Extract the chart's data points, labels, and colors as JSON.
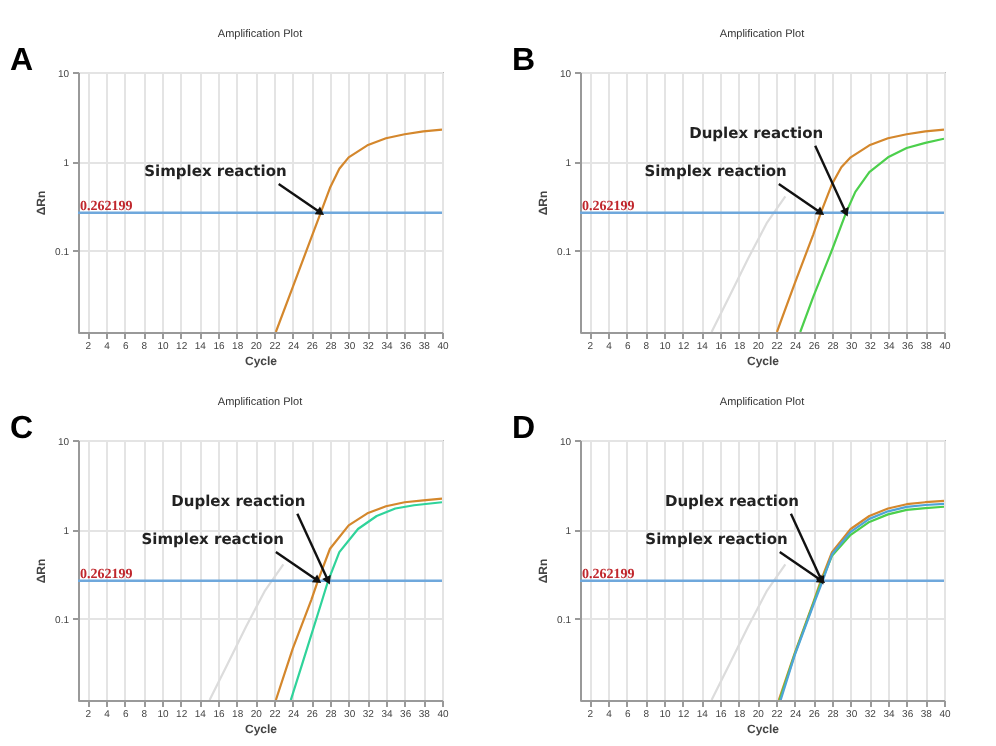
{
  "chart_data": [
    {
      "type": "line",
      "title": "Amplification Plot",
      "xlabel": "Cycle",
      "ylabel": "ΔRn",
      "log": "y",
      "grid": true,
      "legend": false,
      "xlim": [
        1,
        40
      ],
      "ylim": [
        0.012,
        10
      ],
      "xticks": [
        2,
        4,
        6,
        8,
        10,
        12,
        14,
        16,
        18,
        20,
        22,
        24,
        26,
        28,
        30,
        32,
        34,
        36,
        38,
        40
      ],
      "yticks": [
        0.1,
        1,
        10
      ],
      "series": [
        {
          "color": "#d4872c",
          "x": [
            22.2,
            24,
            26,
            27,
            28,
            29,
            30,
            32,
            34,
            36,
            38,
            40
          ],
          "values": [
            0.012,
            0.038,
            0.138,
            0.262,
            0.5,
            0.82,
            1.1,
            1.5,
            1.8,
            2.0,
            2.15,
            2.25
          ]
        }
      ],
      "ref_lines": [
        {
          "axis": "y",
          "value": 0.262199,
          "label": "0.262199",
          "color": "#6fa8dc"
        }
      ],
      "annotations": [
        "A",
        {
          "text": "Simplex reaction",
          "x": 27,
          "y": 0.262199
        }
      ]
    },
    {
      "type": "line",
      "title": "Amplification Plot",
      "xlabel": "Cycle",
      "ylabel": "ΔRn",
      "log": "y",
      "grid": true,
      "legend": false,
      "xlim": [
        1,
        40
      ],
      "ylim": [
        0.012,
        10
      ],
      "xticks": [
        2,
        4,
        6,
        8,
        10,
        12,
        14,
        16,
        18,
        20,
        22,
        24,
        26,
        28,
        30,
        32,
        34,
        36,
        38,
        40
      ],
      "yticks": [
        0.1,
        1,
        10
      ],
      "series": [
        {
          "color": "#dcdcdc",
          "x": [
            15.1,
            17,
            19,
            21,
            23
          ],
          "values": [
            0.012,
            0.03,
            0.08,
            0.2,
            0.4
          ]
        },
        {
          "color": "#d4872c",
          "x": [
            22.1,
            24,
            26,
            26.8,
            28,
            29,
            30,
            32,
            34,
            36,
            38,
            40
          ],
          "values": [
            0.012,
            0.042,
            0.15,
            0.262,
            0.55,
            0.85,
            1.1,
            1.5,
            1.8,
            2.0,
            2.15,
            2.25
          ]
        },
        {
          "color": "#4ccf4c",
          "x": [
            24.6,
            26,
            28,
            29.5,
            30.5,
            32,
            34,
            36,
            38,
            40
          ],
          "values": [
            0.012,
            0.03,
            0.1,
            0.262,
            0.45,
            0.75,
            1.1,
            1.4,
            1.6,
            1.78
          ]
        }
      ],
      "ref_lines": [
        {
          "axis": "y",
          "value": 0.262199,
          "label": "0.262199",
          "color": "#6fa8dc"
        }
      ],
      "annotations": [
        "B",
        {
          "text": "Simplex reaction",
          "x": 26.8,
          "y": 0.262199
        },
        {
          "text": "Duplex reaction",
          "x": 29.5,
          "y": 0.262199
        }
      ]
    },
    {
      "type": "line",
      "title": "Amplification Plot",
      "xlabel": "Cycle",
      "ylabel": "ΔRn",
      "log": "y",
      "grid": true,
      "legend": false,
      "xlim": [
        1,
        40
      ],
      "ylim": [
        0.012,
        10
      ],
      "xticks": [
        2,
        4,
        6,
        8,
        10,
        12,
        14,
        16,
        18,
        20,
        22,
        24,
        26,
        28,
        30,
        32,
        34,
        36,
        38,
        40
      ],
      "yticks": [
        0.1,
        1,
        10
      ],
      "series": [
        {
          "color": "#dcdcdc",
          "x": [
            15.1,
            17,
            19,
            21,
            23
          ],
          "values": [
            0.012,
            0.03,
            0.08,
            0.2,
            0.4
          ]
        },
        {
          "color": "#d4872c",
          "x": [
            22.2,
            24,
            26,
            26.7,
            28,
            30,
            32,
            34,
            36,
            38,
            40
          ],
          "values": [
            0.012,
            0.045,
            0.16,
            0.262,
            0.6,
            1.1,
            1.5,
            1.8,
            2.0,
            2.1,
            2.2
          ]
        },
        {
          "color": "#2fd39a",
          "x": [
            23.8,
            25,
            27,
            27.8,
            29,
            31,
            33,
            35,
            37,
            40
          ],
          "values": [
            0.012,
            0.03,
            0.14,
            0.262,
            0.55,
            1.0,
            1.4,
            1.7,
            1.85,
            2.0
          ]
        }
      ],
      "ref_lines": [
        {
          "axis": "y",
          "value": 0.262199,
          "label": "0.262199",
          "color": "#6fa8dc"
        }
      ],
      "annotations": [
        "C",
        {
          "text": "Simplex reaction",
          "x": 26.7,
          "y": 0.262199
        },
        {
          "text": "Duplex reaction",
          "x": 27.8,
          "y": 0.262199
        }
      ]
    },
    {
      "type": "line",
      "title": "Amplification Plot",
      "xlabel": "Cycle",
      "ylabel": "ΔRn",
      "log": "y",
      "grid": true,
      "legend": false,
      "xlim": [
        1,
        40
      ],
      "ylim": [
        0.012,
        10
      ],
      "xticks": [
        2,
        4,
        6,
        8,
        10,
        12,
        14,
        16,
        18,
        20,
        22,
        24,
        26,
        28,
        30,
        32,
        34,
        36,
        38,
        40
      ],
      "yticks": [
        0.1,
        1,
        10
      ],
      "series": [
        {
          "color": "#dcdcdc",
          "x": [
            15.1,
            17,
            19,
            21,
            23
          ],
          "values": [
            0.012,
            0.03,
            0.08,
            0.2,
            0.4
          ]
        },
        {
          "color": "#d4872c",
          "x": [
            22.3,
            24,
            26,
            26.8,
            28,
            30,
            32,
            34,
            36,
            38,
            40
          ],
          "values": [
            0.012,
            0.04,
            0.15,
            0.262,
            0.55,
            1.0,
            1.4,
            1.7,
            1.9,
            2.0,
            2.07
          ]
        },
        {
          "color": "#4ccf4c",
          "x": [
            22.4,
            24,
            26,
            26.9,
            28,
            30,
            32,
            34,
            36,
            38,
            40
          ],
          "values": [
            0.012,
            0.039,
            0.145,
            0.262,
            0.5,
            0.86,
            1.2,
            1.46,
            1.64,
            1.72,
            1.78
          ]
        },
        {
          "color": "#4fa3d8",
          "x": [
            22.5,
            24,
            26,
            27,
            28,
            30,
            32,
            34,
            36,
            38,
            40
          ],
          "values": [
            0.012,
            0.038,
            0.14,
            0.262,
            0.52,
            0.93,
            1.3,
            1.58,
            1.77,
            1.86,
            1.92
          ]
        }
      ],
      "ref_lines": [
        {
          "axis": "y",
          "value": 0.262199,
          "label": "0.262199",
          "color": "#6fa8dc"
        }
      ],
      "annotations": [
        "D",
        {
          "text": "Simplex reaction",
          "x": 26.9,
          "y": 0.262199
        },
        {
          "text": "Duplex reaction",
          "x": 26.9,
          "y": 0.262199
        }
      ]
    }
  ]
}
